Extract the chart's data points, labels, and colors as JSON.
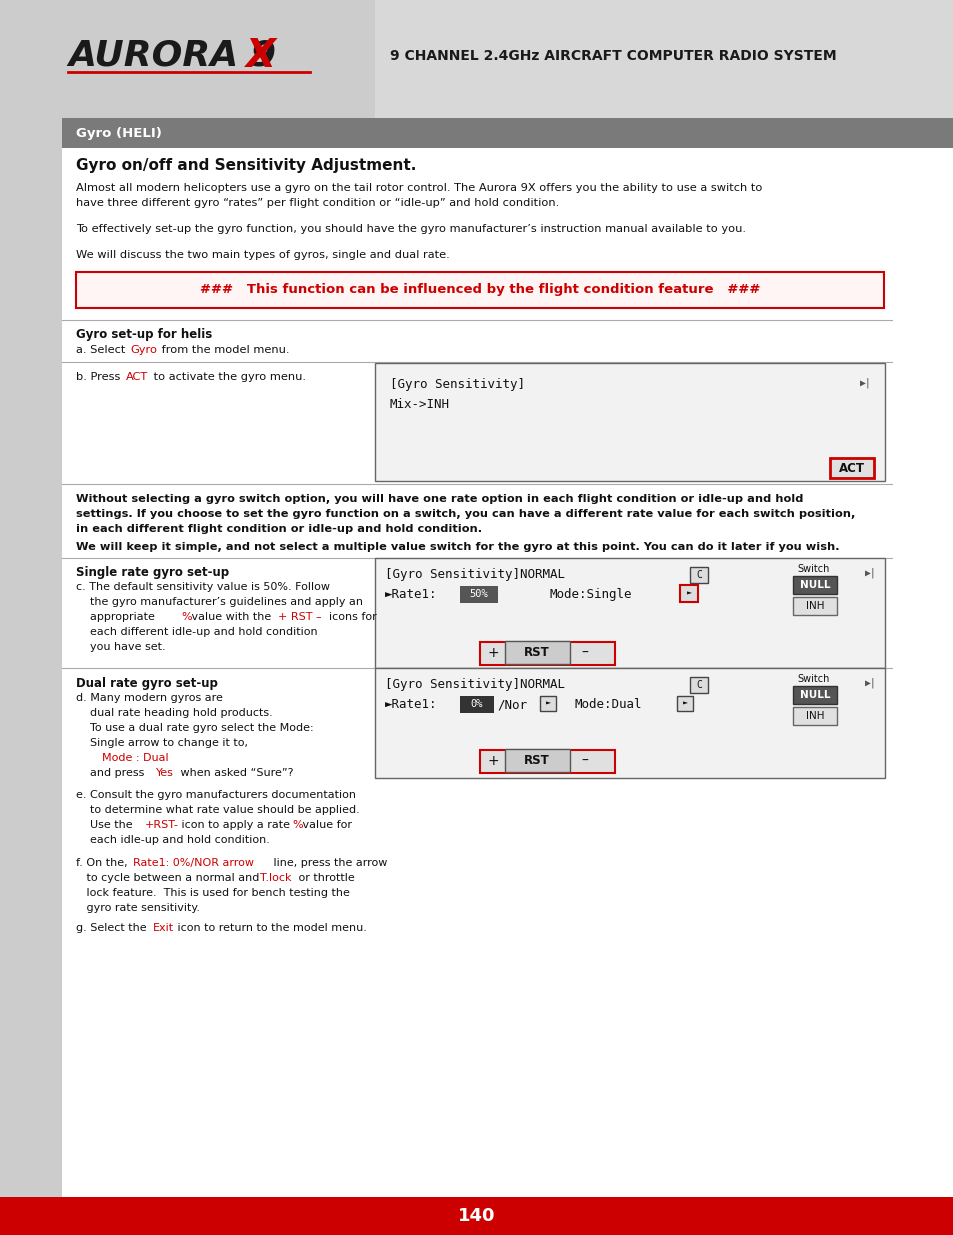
{
  "page_bg": "#d8d8d8",
  "content_bg": "#ffffff",
  "left_panel_bg": "#cccccc",
  "header_bar_bg": "#7a7a7a",
  "footer_bg": "#cc0000",
  "footer_text": "140",
  "title_text": "9 CHANNEL 2.4GHz AIRCRAFT COMPUTER RADIO SYSTEM",
  "header_text": "Gyro (HELI)",
  "section_title": "Gyro on/off and Sensitivity Adjustment.",
  "para1a": "Almost all modern helicopters use a gyro on the tail rotor control. The Aurora 9X offers you the ability to use a switch to",
  "para1b": "have three different gyro “rates” per flight condition or “idle-up” and hold condition.",
  "para2": "To effectively set-up the gyro function, you should have the gyro manufacturer’s instruction manual available to you.",
  "para3": "We will discuss the two main types of gyros, single and dual rate.",
  "warning_text": "###   This function can be influenced by the flight condition feature   ###",
  "gyro_setup_label": "Gyro set-up for helis",
  "step_a1": "a. Select ",
  "step_a2": "Gyro",
  "step_a3": " from the model menu.",
  "step_b1": "b. Press ",
  "step_b2": "ACT",
  "step_b3": " to activate the gyro menu.",
  "screen1_line1": "[Gyro Sensitivity]",
  "screen1_line2": "Mix->INH",
  "mid1a": "Without selecting a gyro switch option, you will have one rate option in each flight condition or idle-up and hold",
  "mid1b": "settings. If you choose to set the gyro function on a switch, you can have a different rate value for each switch position,",
  "mid1c": "in each different flight condition or idle-up and hold condition.",
  "mid2": "We will keep it simple, and not select a multiple value switch for the gyro at this point. You can do it later if you wish.",
  "single_rate_title": "Single rate gyro set-up",
  "dual_rate_title": "Dual rate gyro set-up",
  "red": "#cc0000",
  "dark": "#111111",
  "mono_size": 9.0,
  "body_size": 8.0,
  "heading_size": 8.5
}
